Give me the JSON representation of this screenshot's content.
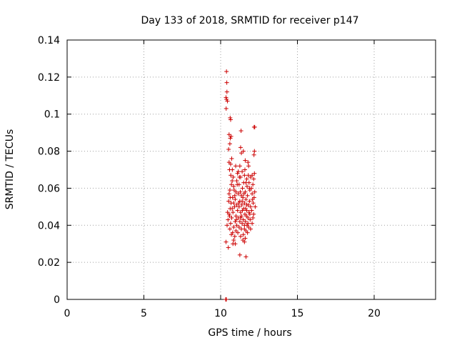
{
  "chart_data": {
    "type": "scatter",
    "title": "Day 133 of 2018, SRMTID for receiver p147",
    "xlabel": "GPS time / hours",
    "ylabel": "SRMTID / TECUs",
    "xlim": [
      0,
      24
    ],
    "ylim": [
      0,
      0.14
    ],
    "xticks": [
      0,
      5,
      10,
      15,
      20
    ],
    "yticks": [
      0,
      0.02,
      0.04,
      0.06,
      0.08,
      0.1,
      0.12,
      0.14
    ],
    "ytick_labels": [
      "0",
      "0.02",
      "0.04",
      "0.06",
      "0.08",
      "0.1",
      "0.12",
      "0.14"
    ],
    "grid": true,
    "marker": "+",
    "color": "#cc0000",
    "series": [
      {
        "points": [
          [
            10.33,
            0.0
          ],
          [
            10.35,
            0.0
          ],
          [
            10.37,
            0.0
          ],
          [
            10.38,
            0.123
          ],
          [
            10.4,
            0.117
          ],
          [
            10.41,
            0.112
          ],
          [
            10.35,
            0.109
          ],
          [
            10.38,
            0.108
          ],
          [
            10.44,
            0.107
          ],
          [
            10.36,
            0.103
          ],
          [
            10.62,
            0.098
          ],
          [
            10.65,
            0.097
          ],
          [
            12.18,
            0.093
          ],
          [
            12.22,
            0.093
          ],
          [
            11.33,
            0.091
          ],
          [
            10.55,
            0.089
          ],
          [
            10.68,
            0.088
          ],
          [
            10.63,
            0.087
          ],
          [
            10.6,
            0.084
          ],
          [
            11.3,
            0.082
          ],
          [
            10.52,
            0.081
          ],
          [
            11.48,
            0.08
          ],
          [
            12.2,
            0.08
          ],
          [
            11.35,
            0.079
          ],
          [
            12.17,
            0.078
          ],
          [
            10.72,
            0.076
          ],
          [
            11.6,
            0.075
          ],
          [
            10.55,
            0.074
          ],
          [
            10.65,
            0.073
          ],
          [
            11.78,
            0.074
          ],
          [
            11.25,
            0.072
          ],
          [
            11.82,
            0.072
          ],
          [
            10.58,
            0.07
          ],
          [
            10.76,
            0.07
          ],
          [
            11.4,
            0.069
          ],
          [
            11.1,
            0.068
          ],
          [
            11.55,
            0.067
          ],
          [
            12.05,
            0.067
          ],
          [
            12.2,
            0.068
          ],
          [
            10.82,
            0.066
          ],
          [
            11.3,
            0.066
          ],
          [
            11.7,
            0.065
          ],
          [
            11.95,
            0.066
          ],
          [
            12.15,
            0.065
          ],
          [
            11.05,
            0.064
          ],
          [
            11.5,
            0.063
          ],
          [
            10.7,
            0.062
          ],
          [
            11.2,
            0.062
          ],
          [
            11.85,
            0.063
          ],
          [
            12.1,
            0.062
          ],
          [
            10.85,
            0.061
          ],
          [
            11.42,
            0.06
          ],
          [
            11.72,
            0.061
          ],
          [
            12.0,
            0.06
          ],
          [
            10.6,
            0.059
          ],
          [
            11.0,
            0.058
          ],
          [
            11.6,
            0.058
          ],
          [
            11.9,
            0.059
          ],
          [
            12.22,
            0.058
          ],
          [
            10.55,
            0.057
          ],
          [
            11.15,
            0.057
          ],
          [
            11.35,
            0.056
          ],
          [
            11.75,
            0.056
          ],
          [
            12.05,
            0.057
          ],
          [
            10.78,
            0.055
          ],
          [
            10.95,
            0.054
          ],
          [
            11.45,
            0.055
          ],
          [
            11.65,
            0.054
          ],
          [
            12.18,
            0.055
          ],
          [
            10.52,
            0.053
          ],
          [
            11.25,
            0.053
          ],
          [
            11.55,
            0.052
          ],
          [
            11.88,
            0.053
          ],
          [
            10.68,
            0.052
          ],
          [
            11.05,
            0.051
          ],
          [
            11.38,
            0.051
          ],
          [
            11.8,
            0.051
          ],
          [
            12.12,
            0.052
          ],
          [
            10.9,
            0.05
          ],
          [
            11.2,
            0.05
          ],
          [
            11.5,
            0.049
          ],
          [
            11.95,
            0.05
          ],
          [
            12.25,
            0.05
          ],
          [
            10.62,
            0.049
          ],
          [
            11.1,
            0.048
          ],
          [
            11.42,
            0.048
          ],
          [
            11.7,
            0.048
          ],
          [
            12.02,
            0.048
          ],
          [
            10.8,
            0.047
          ],
          [
            11.3,
            0.047
          ],
          [
            11.58,
            0.046
          ],
          [
            11.85,
            0.047
          ],
          [
            10.55,
            0.046
          ],
          [
            11.0,
            0.045
          ],
          [
            11.35,
            0.045
          ],
          [
            11.68,
            0.045
          ],
          [
            12.15,
            0.046
          ],
          [
            10.72,
            0.044
          ],
          [
            11.15,
            0.044
          ],
          [
            11.48,
            0.043
          ],
          [
            11.78,
            0.044
          ],
          [
            10.48,
            0.043
          ],
          [
            10.95,
            0.042
          ],
          [
            11.25,
            0.042
          ],
          [
            11.62,
            0.042
          ],
          [
            11.92,
            0.043
          ],
          [
            10.65,
            0.041
          ],
          [
            11.05,
            0.04
          ],
          [
            11.4,
            0.041
          ],
          [
            11.72,
            0.04
          ],
          [
            12.05,
            0.041
          ],
          [
            10.42,
            0.04
          ],
          [
            10.85,
            0.039
          ],
          [
            11.2,
            0.039
          ],
          [
            11.55,
            0.038
          ],
          [
            11.82,
            0.039
          ],
          [
            10.6,
            0.038
          ],
          [
            11.0,
            0.037
          ],
          [
            11.35,
            0.038
          ],
          [
            11.65,
            0.037
          ],
          [
            11.95,
            0.038
          ],
          [
            10.78,
            0.036
          ],
          [
            11.12,
            0.036
          ],
          [
            11.48,
            0.035
          ],
          [
            11.75,
            0.036
          ],
          [
            10.7,
            0.035
          ],
          [
            10.92,
            0.034
          ],
          [
            11.3,
            0.034
          ],
          [
            11.6,
            0.033
          ],
          [
            10.85,
            0.032
          ],
          [
            11.45,
            0.032
          ],
          [
            10.35,
            0.031
          ],
          [
            10.8,
            0.03
          ],
          [
            10.95,
            0.03
          ],
          [
            11.55,
            0.031
          ],
          [
            10.5,
            0.028
          ],
          [
            11.25,
            0.024
          ],
          [
            11.65,
            0.023
          ],
          [
            10.75,
            0.064
          ],
          [
            11.65,
            0.063
          ],
          [
            10.88,
            0.059
          ],
          [
            11.22,
            0.066
          ],
          [
            11.58,
            0.07
          ],
          [
            10.98,
            0.072
          ],
          [
            10.66,
            0.067
          ],
          [
            11.15,
            0.069
          ],
          [
            11.52,
            0.057
          ],
          [
            12.08,
            0.054
          ],
          [
            10.92,
            0.056
          ],
          [
            11.28,
            0.058
          ],
          [
            11.8,
            0.067
          ],
          [
            10.58,
            0.045
          ],
          [
            11.02,
            0.043
          ],
          [
            11.62,
            0.049
          ],
          [
            11.9,
            0.046
          ],
          [
            12.1,
            0.044
          ],
          [
            10.75,
            0.049
          ],
          [
            11.18,
            0.052
          ],
          [
            11.4,
            0.053
          ],
          [
            11.7,
            0.051
          ],
          [
            10.45,
            0.047
          ],
          [
            10.85,
            0.052
          ],
          [
            11.55,
            0.04
          ],
          [
            11.78,
            0.041
          ],
          [
            11.3,
            0.044
          ],
          [
            10.62,
            0.055
          ],
          [
            11.08,
            0.062
          ],
          [
            11.88,
            0.06
          ]
        ]
      }
    ]
  }
}
